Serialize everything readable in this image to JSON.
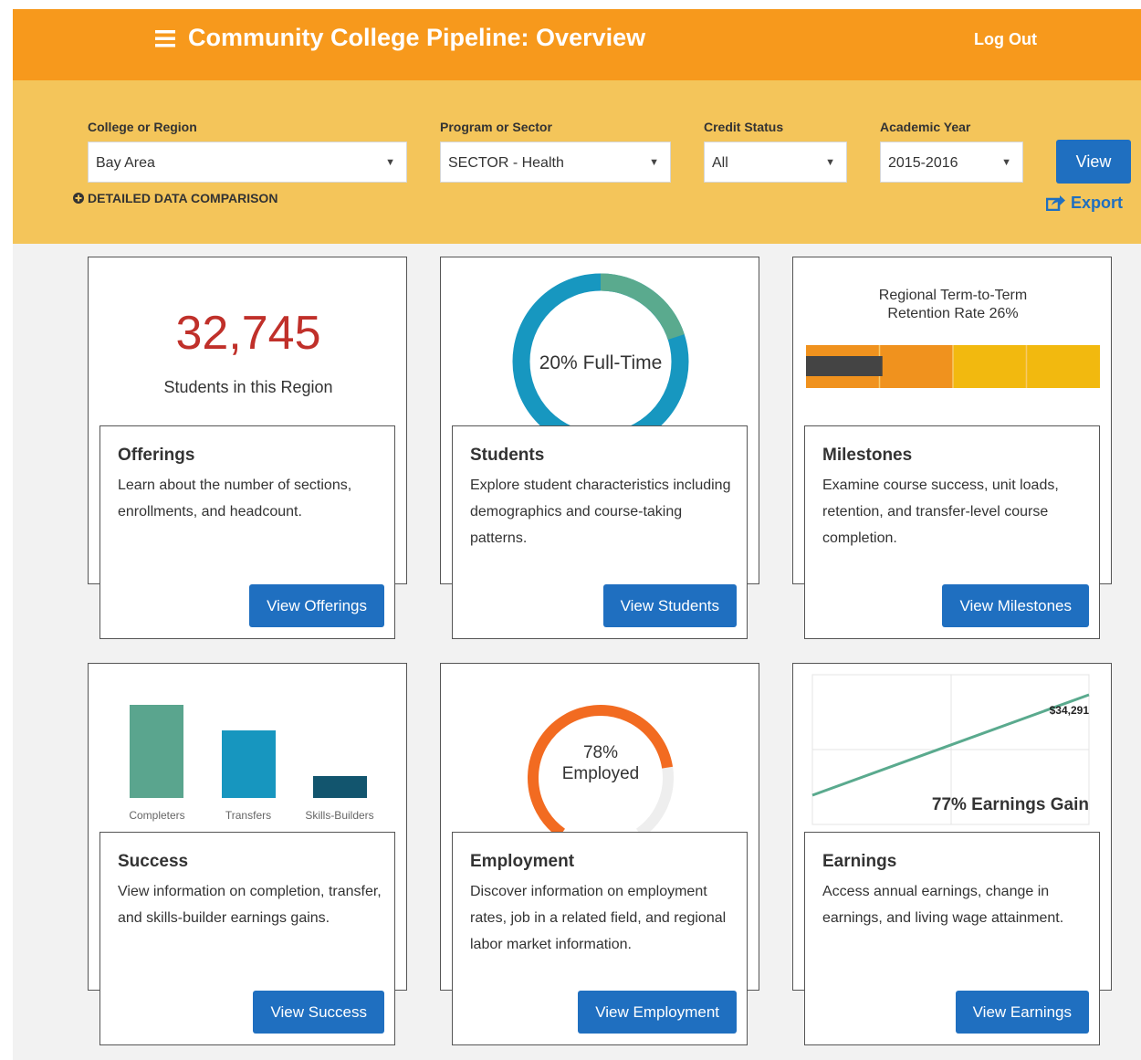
{
  "header": {
    "title": "Community College Pipeline: Overview",
    "logout": "Log Out"
  },
  "filters": [
    {
      "label": "College or Region",
      "value": "Bay Area"
    },
    {
      "label": "Program or Sector",
      "value": "SECTOR - Health"
    },
    {
      "label": "Credit Status",
      "value": "All"
    },
    {
      "label": "Academic Year",
      "value": "2015-2016"
    }
  ],
  "detailed_comparison": "DETAILED DATA COMPARISON",
  "view_button": "View",
  "export": "Export",
  "cards": [
    {
      "title": "Offerings",
      "description": "Learn about the number of sections, enrollments, and headcount.",
      "button": "View Offerings",
      "stat": "32,745",
      "stat_caption": "Students in this Region"
    },
    {
      "title": "Students",
      "description": "Explore student characteristics including demographics and course-taking patterns.",
      "button": "View Students",
      "donut_label": "20% Full-Time",
      "full_time_pct": 20
    },
    {
      "title": "Milestones",
      "description": "Examine course success, unit loads, retention, and transfer-level course completion.",
      "button": "View Milestones",
      "chart_title": "Regional Term-to-Term Retention Rate 26%",
      "retention_pct": 26
    },
    {
      "title": "Success",
      "description": "View information on completion, transfer, and skills-builder earnings gains.",
      "button": "View Success",
      "bar_labels": [
        "Completers",
        "Transfers",
        "Skills-Builders"
      ]
    },
    {
      "title": "Employment",
      "description": "Discover information on employment rates, job in a related field, and regional labor market information.",
      "button": "View Employment",
      "gauge_label": "78% Employed",
      "employed_pct": 78
    },
    {
      "title": "Earnings",
      "description": "Access annual earnings, change in earnings, and living wage attainment.",
      "button": "View Earnings",
      "line_label": "$34,291",
      "caption": "77% Earnings Gain"
    }
  ]
}
